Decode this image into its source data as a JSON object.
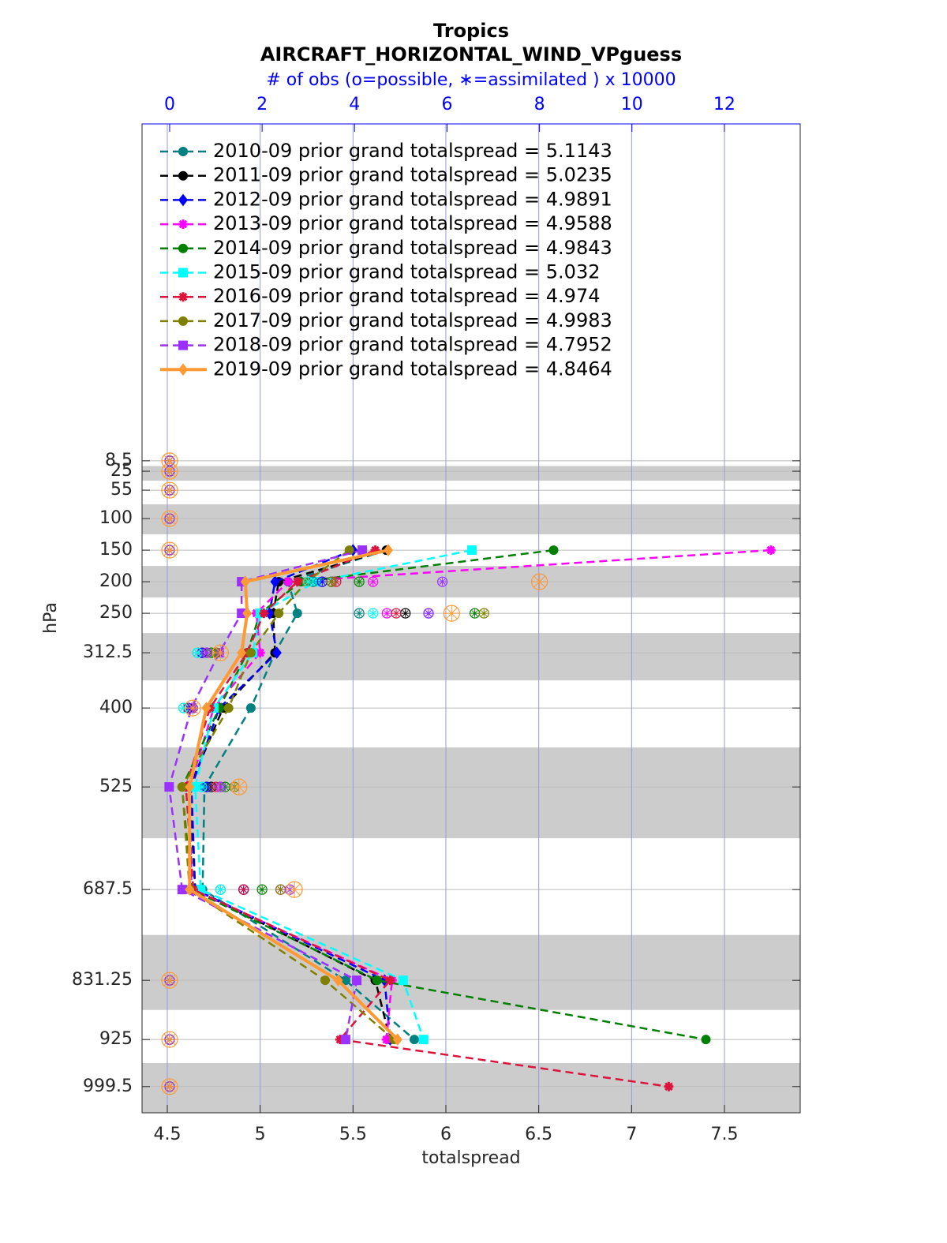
{
  "chart_data": {
    "type": "line",
    "title": "Tropics",
    "subtitle": "AIRCRAFT_HORIZONTAL_WIND_VPguess",
    "x2label": "# of obs (o=possible, ∗=assimilated ) x 10000",
    "xlabel": "totalspread",
    "ylabel": "hPa",
    "y": [
      8.5,
      25,
      55,
      100,
      150,
      200,
      250,
      312.5,
      400,
      525,
      687.5,
      831.25,
      925,
      999.5
    ],
    "ylim": [
      1041,
      -525
    ],
    "yticks": [
      8.5,
      25,
      55,
      100,
      150,
      200,
      250,
      312.5,
      400,
      525,
      687.5,
      831.25,
      925,
      999.5
    ],
    "xlim": [
      4.364,
      7.908
    ],
    "xticks": [
      4.5,
      5,
      5.5,
      6,
      6.5,
      7,
      7.5
    ],
    "x2lim": [
      -0.597,
      13.64
    ],
    "x2ticks": [
      0,
      2,
      4,
      6,
      8,
      10,
      12
    ],
    "grid": true,
    "legend": "upper left",
    "series": [
      {
        "name": "2010-09 prior grand totalspread = 5.1143",
        "color": "#008080",
        "marker": "circle",
        "linestyle": "dashed",
        "values": [
          null,
          null,
          null,
          null,
          5.68,
          5.15,
          5.2,
          5.08,
          4.95,
          4.7,
          4.69,
          5.46,
          5.83,
          null
        ],
        "nobs": [
          0,
          0,
          0,
          0,
          0,
          3.1,
          4.1,
          0.6,
          0.3,
          0.8,
          1.1,
          0,
          0,
          0
        ]
      },
      {
        "name": "2011-09 prior grand totalspread = 5.0235",
        "color": "#000000",
        "marker": "circle",
        "linestyle": "dashed",
        "values": [
          null,
          null,
          null,
          null,
          5.68,
          5.1,
          5.07,
          5.08,
          4.8,
          4.62,
          4.65,
          5.62,
          5.7,
          null
        ],
        "nobs": [
          0,
          0,
          0,
          0,
          0,
          3.5,
          5.1,
          0.7,
          0.4,
          0.9,
          1.6,
          0,
          0,
          0
        ]
      },
      {
        "name": "2012-09 prior grand totalspread = 4.9891",
        "color": "#0000ff",
        "marker": "diamond",
        "linestyle": "dashed",
        "values": [
          null,
          null,
          null,
          null,
          5.5,
          5.08,
          5.05,
          5.09,
          4.78,
          4.63,
          4.65,
          5.67,
          5.7,
          null
        ],
        "nobs": [
          0,
          0,
          0,
          0,
          0,
          3.3,
          5.6,
          0.7,
          0.4,
          0.8,
          1.6,
          0,
          0,
          0
        ]
      },
      {
        "name": "2013-09 prior grand totalspread = 4.9588",
        "color": "#ff00ff",
        "marker": "star",
        "linestyle": "dashed",
        "values": [
          null,
          null,
          null,
          null,
          7.75,
          5.15,
          4.98,
          5.0,
          4.75,
          4.62,
          4.63,
          5.71,
          5.68,
          null
        ],
        "nobs": [
          0,
          0,
          0,
          0,
          0,
          4.4,
          4.7,
          0.8,
          0.5,
          1.1,
          2.4,
          0,
          0,
          0
        ]
      },
      {
        "name": "2014-09 prior grand totalspread = 4.9843",
        "color": "#008000",
        "marker": "circle",
        "linestyle": "dashed",
        "values": [
          null,
          null,
          null,
          null,
          6.58,
          5.22,
          5.0,
          4.93,
          4.78,
          4.58,
          4.63,
          5.63,
          7.4,
          null
        ],
        "nobs": [
          0,
          0,
          0,
          0,
          0,
          4.1,
          6.6,
          0.9,
          0.5,
          1.2,
          2.0,
          0,
          0,
          0
        ]
      },
      {
        "name": "2015-09 prior grand totalspread = 5.032",
        "color": "#00ffff",
        "marker": "square",
        "linestyle": "dashed",
        "values": [
          null,
          null,
          null,
          null,
          6.14,
          5.3,
          5.0,
          4.96,
          4.75,
          4.65,
          4.68,
          5.77,
          5.88,
          null
        ],
        "nobs": [
          0,
          0,
          0,
          0,
          0,
          3.0,
          4.4,
          0.6,
          0.3,
          0.7,
          1.1,
          0,
          0,
          0
        ]
      },
      {
        "name": "2016-09 prior grand totalspread = 4.974",
        "color": "#dc143c",
        "marker": "star",
        "linestyle": "dashed",
        "values": [
          null,
          null,
          null,
          null,
          5.62,
          5.2,
          5.02,
          4.93,
          4.73,
          4.6,
          4.64,
          5.7,
          5.43,
          7.2
        ],
        "nobs": [
          0,
          0,
          0,
          0,
          0,
          3.6,
          4.9,
          0.8,
          0.5,
          1.0,
          1.6,
          0,
          0,
          0
        ]
      },
      {
        "name": "2017-09 prior grand totalspread = 4.9983",
        "color": "#808000",
        "marker": "circle",
        "linestyle": "dashed",
        "values": [
          null,
          null,
          null,
          null,
          5.48,
          5.25,
          5.1,
          4.95,
          4.83,
          4.58,
          4.62,
          5.35,
          5.72,
          null
        ],
        "nobs": [
          0,
          0,
          0,
          0,
          0,
          3.5,
          6.8,
          1.0,
          0.5,
          1.4,
          2.4,
          0,
          0,
          0
        ]
      },
      {
        "name": "2018-09 prior grand totalspread = 4.7952",
        "color": "#9b30ff",
        "marker": "square",
        "linestyle": "dashed",
        "values": [
          null,
          null,
          null,
          null,
          5.55,
          4.9,
          4.9,
          4.78,
          4.63,
          4.51,
          4.58,
          5.52,
          5.46,
          null
        ],
        "nobs": [
          0,
          0,
          0,
          0,
          0,
          5.9,
          5.6,
          0.8,
          0.5,
          1.1,
          2.6,
          0,
          0,
          0
        ]
      },
      {
        "name": "2019-09 prior grand totalspread = 4.8464",
        "color": "#ff9933",
        "marker": "diamond",
        "linestyle": "solid",
        "values": [
          null,
          null,
          null,
          null,
          5.69,
          4.92,
          4.93,
          4.9,
          4.71,
          4.62,
          4.62,
          5.42,
          5.74,
          null
        ],
        "nobs": [
          0,
          0,
          0,
          0,
          0,
          8.0,
          6.1,
          1.1,
          0.5,
          1.5,
          2.7,
          0,
          0,
          0
        ]
      }
    ]
  }
}
